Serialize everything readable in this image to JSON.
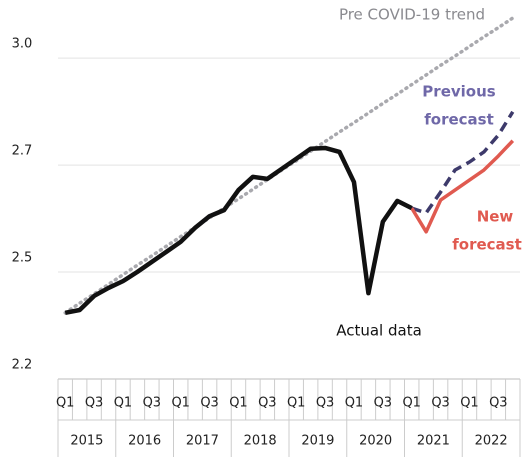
{
  "chart_data": {
    "type": "line",
    "categories": [
      "Q1",
      null,
      "Q3",
      null,
      "Q1",
      null,
      "Q3",
      null,
      "Q1",
      null,
      "Q3",
      null,
      "Q1",
      null,
      "Q3",
      null,
      "Q1",
      null,
      "Q3",
      null,
      "Q1",
      null,
      "Q3",
      null,
      "Q1",
      null,
      "Q3",
      null,
      "Q1",
      null,
      "Q3",
      null
    ],
    "years": [
      "2015",
      "2016",
      "2017",
      "2018",
      "2019",
      "2020",
      "2021",
      "2022"
    ],
    "ylim": [
      2.2,
      3.1
    ],
    "yticks": [
      2.2,
      {
        "value": 2.4667,
        "label": "2.5"
      },
      {
        "value": 2.7333,
        "label": "2.7"
      },
      {
        "value": 3.0,
        "label": "3.0"
      }
    ],
    "grid": true,
    "series": [
      {
        "name": "Pre COVID-19 trend",
        "color": "#a9a9ae",
        "style": "dotted",
        "values": [
          2.365,
          2.389,
          2.412,
          2.436,
          2.46,
          2.484,
          2.507,
          2.531,
          2.555,
          2.578,
          2.602,
          2.626,
          2.649,
          2.673,
          2.697,
          2.721,
          2.744,
          2.768,
          2.792,
          2.816,
          2.839,
          2.863,
          2.887,
          2.91,
          2.934,
          2.958,
          2.982,
          3.005,
          3.029,
          3.053,
          3.076,
          3.1
        ]
      },
      {
        "name": "Actual data",
        "color": "#111111",
        "style": "solid",
        "values": [
          2.365,
          2.372,
          2.407,
          2.427,
          2.444,
          2.467,
          2.492,
          2.517,
          2.542,
          2.577,
          2.606,
          2.621,
          2.671,
          2.704,
          2.699,
          2.724,
          2.749,
          2.774,
          2.776,
          2.766,
          2.691,
          2.414,
          2.592,
          2.644,
          2.626,
          null,
          null,
          null,
          null,
          null,
          null,
          null
        ]
      },
      {
        "name": "Previous forecast",
        "color": "#3d3a6b",
        "style": "dashed",
        "values": [
          null,
          null,
          null,
          null,
          null,
          null,
          null,
          null,
          null,
          null,
          null,
          null,
          null,
          null,
          null,
          null,
          null,
          null,
          null,
          null,
          null,
          null,
          null,
          null,
          2.626,
          2.614,
          2.666,
          2.721,
          2.741,
          2.766,
          2.808,
          2.866
        ]
      },
      {
        "name": "New forecast",
        "color": "#e05a50",
        "style": "solid",
        "values": [
          null,
          null,
          null,
          null,
          null,
          null,
          null,
          null,
          null,
          null,
          null,
          null,
          null,
          null,
          null,
          null,
          null,
          null,
          null,
          null,
          null,
          null,
          null,
          null,
          2.626,
          2.567,
          2.646,
          2.671,
          2.696,
          2.721,
          2.756,
          2.794
        ]
      }
    ],
    "annotations": [
      {
        "lines": [
          "Pre COVID-19 trend"
        ],
        "color": "#8a8a8f"
      },
      {
        "lines": [
          "Previous",
          "forecast"
        ],
        "color": "#6f68a8"
      },
      {
        "lines": [
          "New",
          "forecast"
        ],
        "color": "#e05a50"
      },
      {
        "lines": [
          "Actual data"
        ],
        "color": "#111111"
      }
    ]
  }
}
